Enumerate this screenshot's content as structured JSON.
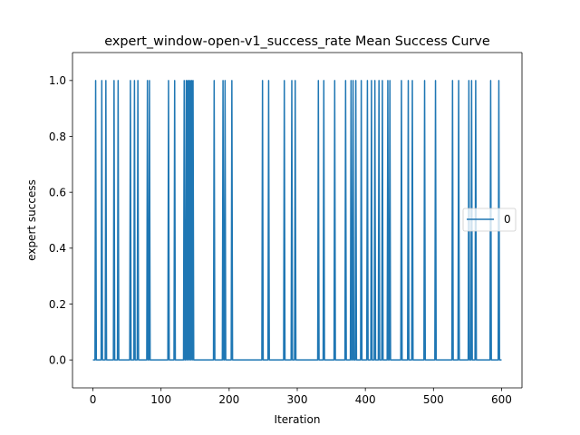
{
  "chart_data": {
    "type": "line",
    "title": "expert_window-open-v1_success_rate Mean Success Curve",
    "xlabel": "Iteration",
    "ylabel": "expert success",
    "xlim": [
      -30,
      630
    ],
    "ylim": [
      -0.1,
      1.1
    ],
    "x_ticks": [
      0,
      100,
      200,
      300,
      400,
      500,
      600
    ],
    "x_tick_labels": [
      "0",
      "100",
      "200",
      "300",
      "400",
      "500",
      "600"
    ],
    "y_ticks": [
      0.0,
      0.2,
      0.4,
      0.6,
      0.8,
      1.0
    ],
    "y_tick_labels": [
      "0.0",
      "0.2",
      "0.4",
      "0.6",
      "0.8",
      "1.0"
    ],
    "grid": false,
    "legend_placement": "center-right",
    "series": [
      {
        "name": "0",
        "color": "#1f77b4",
        "x_range": [
          0,
          600
        ],
        "baseline": 0,
        "spike_value": 1,
        "spike_iterations": [
          4,
          13,
          19,
          31,
          37,
          55,
          61,
          66,
          80,
          83,
          111,
          120,
          134,
          137,
          139,
          141,
          143,
          145,
          147,
          178,
          191,
          194,
          204,
          249,
          258,
          281,
          292,
          297,
          331,
          339,
          355,
          371,
          379,
          382,
          386,
          394,
          403,
          409,
          414,
          420,
          425,
          433,
          436,
          453,
          463,
          469,
          487,
          503,
          528,
          537,
          552,
          556,
          562,
          584,
          596
        ]
      }
    ]
  }
}
